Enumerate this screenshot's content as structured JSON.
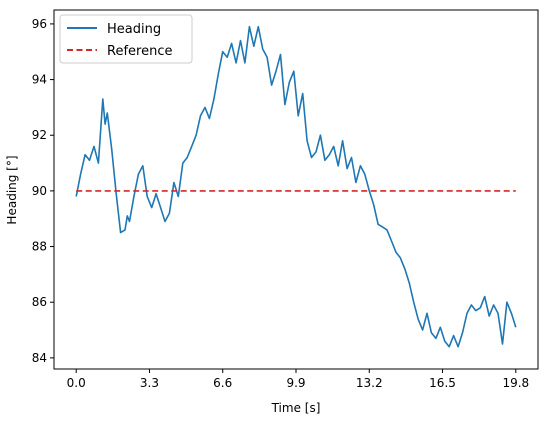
{
  "chart_data": {
    "type": "line",
    "title": "",
    "xlabel": "Time [s]",
    "ylabel": "Heading [°]",
    "xlim": [
      -1.0,
      20.8
    ],
    "ylim": [
      83.6,
      96.5
    ],
    "x_ticks": [
      0.0,
      3.3,
      6.6,
      9.9,
      13.2,
      16.5,
      19.8
    ],
    "x_tick_labels": [
      "0.0",
      "3.3",
      "6.6",
      "9.9",
      "13.2",
      "16.5",
      "19.8"
    ],
    "y_ticks": [
      84,
      86,
      88,
      90,
      92,
      94,
      96
    ],
    "y_tick_labels": [
      "84",
      "86",
      "88",
      "90",
      "92",
      "94",
      "96"
    ],
    "grid": false,
    "legend_position": "top-left",
    "series": [
      {
        "name": "Heading",
        "color": "#1f77b4",
        "style": "solid",
        "x": [
          0.0,
          0.2,
          0.4,
          0.6,
          0.8,
          1.0,
          1.2,
          1.3,
          1.4,
          1.6,
          1.8,
          2.0,
          2.2,
          2.3,
          2.4,
          2.6,
          2.8,
          3.0,
          3.2,
          3.4,
          3.6,
          3.8,
          4.0,
          4.2,
          4.4,
          4.6,
          4.8,
          5.0,
          5.2,
          5.4,
          5.6,
          5.8,
          6.0,
          6.2,
          6.4,
          6.6,
          6.8,
          7.0,
          7.2,
          7.4,
          7.6,
          7.8,
          8.0,
          8.2,
          8.4,
          8.6,
          8.8,
          9.0,
          9.2,
          9.4,
          9.6,
          9.8,
          10.0,
          10.2,
          10.4,
          10.6,
          10.8,
          11.0,
          11.2,
          11.4,
          11.6,
          11.8,
          12.0,
          12.2,
          12.4,
          12.6,
          12.8,
          13.0,
          13.2,
          13.4,
          13.6,
          13.8,
          14.0,
          14.2,
          14.4,
          14.6,
          14.8,
          15.0,
          15.2,
          15.4,
          15.6,
          15.8,
          16.0,
          16.2,
          16.4,
          16.6,
          16.8,
          17.0,
          17.2,
          17.4,
          17.6,
          17.8,
          18.0,
          18.2,
          18.4,
          18.6,
          18.8,
          19.0,
          19.2,
          19.4,
          19.6,
          19.8
        ],
        "y": [
          89.8,
          90.6,
          91.3,
          91.1,
          91.6,
          91.0,
          93.3,
          92.4,
          92.8,
          91.5,
          89.9,
          88.5,
          88.6,
          89.1,
          88.9,
          89.8,
          90.6,
          90.9,
          89.8,
          89.4,
          89.9,
          89.4,
          88.9,
          89.2,
          90.3,
          89.8,
          91.0,
          91.2,
          91.6,
          92.0,
          92.7,
          93.0,
          92.6,
          93.3,
          94.2,
          95.0,
          94.8,
          95.3,
          94.6,
          95.4,
          94.6,
          95.9,
          95.2,
          95.9,
          95.1,
          94.8,
          93.8,
          94.3,
          94.9,
          93.1,
          93.9,
          94.3,
          92.7,
          93.5,
          91.8,
          91.2,
          91.4,
          92.0,
          91.1,
          91.3,
          91.6,
          90.9,
          91.8,
          90.8,
          91.2,
          90.3,
          90.9,
          90.6,
          90.0,
          89.5,
          88.8,
          88.7,
          88.6,
          88.2,
          87.8,
          87.6,
          87.2,
          86.7,
          86.0,
          85.4,
          85.0,
          85.6,
          84.9,
          84.7,
          85.1,
          84.6,
          84.4,
          84.8,
          84.4,
          84.9,
          85.6,
          85.9,
          85.7,
          85.8,
          86.2,
          85.5,
          85.9,
          85.6,
          84.5,
          86.0,
          85.6,
          85.1
        ]
      },
      {
        "name": "Reference",
        "color": "#d62728",
        "style": "dashed",
        "x": [
          0.0,
          19.8
        ],
        "y": [
          90.0,
          90.0
        ]
      }
    ]
  }
}
